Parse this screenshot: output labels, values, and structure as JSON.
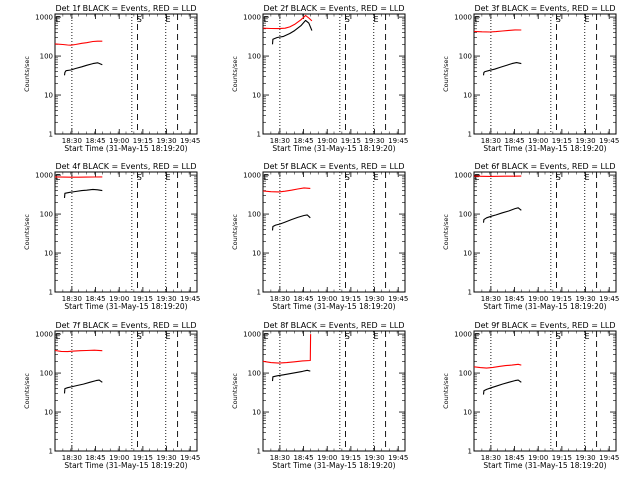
{
  "figure": {
    "xlabel": "Start Time (31-May-15 18:19:20)",
    "ylabel": "Counts/sec",
    "x_tick_labels": [
      "18:30",
      "18:45",
      "19:00",
      "19:15",
      "19:30",
      "19:45"
    ],
    "y_tick_labels": [
      "1",
      "10",
      "100",
      "1000"
    ],
    "markers": [
      "E",
      "S",
      "E"
    ],
    "colors": {
      "events": "#000000",
      "lld": "#ff0000"
    }
  },
  "chart_data": [
    {
      "type": "line",
      "title": "Det 1f BLACK = Events, RED = LLD",
      "y_scale": "log",
      "ylim": [
        1,
        1200
      ],
      "x_unit": "minutes after 18:19:20",
      "xlim": [
        0,
        90
      ],
      "vlines_dotted": [
        10.7,
        48.7,
        70.2
      ],
      "vlines_dashed": [
        52.3,
        77.7
      ],
      "series": [
        {
          "name": "LLD",
          "color": "#ff0000",
          "points": [
            [
              0,
              205
            ],
            [
              5,
              198
            ],
            [
              8,
              192
            ],
            [
              10,
              190
            ],
            [
              13,
              198
            ],
            [
              17,
              212
            ],
            [
              20,
              220
            ],
            [
              24,
              236
            ],
            [
              27,
              240
            ],
            [
              30,
              240
            ]
          ]
        },
        {
          "name": "Events",
          "color": "#000000",
          "points": [
            [
              6,
              32
            ],
            [
              6.3,
              38
            ],
            [
              7,
              42
            ],
            [
              10,
              44
            ],
            [
              13,
              48
            ],
            [
              17,
              53
            ],
            [
              20,
              58
            ],
            [
              24,
              64
            ],
            [
              27,
              67
            ],
            [
              30,
              60
            ]
          ]
        }
      ]
    },
    {
      "type": "line",
      "title": "Det 2f BLACK = Events, RED = LLD",
      "y_scale": "log",
      "ylim": [
        1,
        1200
      ],
      "x_unit": "minutes after 18:19:20",
      "xlim": [
        0,
        90
      ],
      "vlines_dotted": [
        10.7,
        48.7,
        70.2
      ],
      "vlines_dashed": [
        52.3,
        77.7
      ],
      "series": [
        {
          "name": "LLD",
          "color": "#ff0000",
          "points": [
            [
              0,
              520
            ],
            [
              5,
              510
            ],
            [
              10,
              505
            ],
            [
              14,
              520
            ],
            [
              17,
              560
            ],
            [
              20,
              650
            ],
            [
              24,
              850
            ],
            [
              27,
              1100
            ],
            [
              29,
              950
            ],
            [
              31,
              800
            ]
          ]
        },
        {
          "name": "Events",
          "color": "#000000",
          "points": [
            [
              6,
              200
            ],
            [
              6.3,
              270
            ],
            [
              9,
              300
            ],
            [
              13,
              320
            ],
            [
              17,
              380
            ],
            [
              20,
              450
            ],
            [
              24,
              600
            ],
            [
              27,
              820
            ],
            [
              29,
              700
            ],
            [
              31,
              450
            ]
          ]
        }
      ]
    },
    {
      "type": "line",
      "title": "Det 3f BLACK = Events, RED = LLD",
      "y_scale": "log",
      "ylim": [
        1,
        1200
      ],
      "x_unit": "minutes after 18:19:20",
      "xlim": [
        0,
        90
      ],
      "vlines_dotted": [
        10.7,
        48.7,
        70.2
      ],
      "vlines_dashed": [
        52.3,
        77.7
      ],
      "series": [
        {
          "name": "LLD",
          "color": "#ff0000",
          "points": [
            [
              0,
              430
            ],
            [
              5,
              420
            ],
            [
              10,
              415
            ],
            [
              14,
              425
            ],
            [
              18,
              440
            ],
            [
              22,
              455
            ],
            [
              26,
              470
            ],
            [
              30,
              465
            ]
          ]
        },
        {
          "name": "Events",
          "color": "#000000",
          "points": [
            [
              6,
              32
            ],
            [
              6.3,
              38
            ],
            [
              7,
              40
            ],
            [
              10,
              43
            ],
            [
              13,
              46
            ],
            [
              17,
              52
            ],
            [
              20,
              57
            ],
            [
              24,
              64
            ],
            [
              27,
              68
            ],
            [
              30,
              64
            ]
          ]
        }
      ]
    },
    {
      "type": "line",
      "title": "Det 4f BLACK = Events, RED = LLD",
      "y_scale": "log",
      "ylim": [
        1,
        1200
      ],
      "x_unit": "minutes after 18:19:20",
      "xlim": [
        0,
        90
      ],
      "vlines_dotted": [
        10.7,
        48.7,
        70.2
      ],
      "vlines_dashed": [
        52.3,
        77.7
      ],
      "series": [
        {
          "name": "LLD",
          "color": "#ff0000",
          "points": [
            [
              0,
              900
            ],
            [
              5,
              890
            ],
            [
              10,
              880
            ],
            [
              15,
              885
            ],
            [
              20,
              890
            ],
            [
              25,
              895
            ],
            [
              30,
              900
            ]
          ]
        },
        {
          "name": "Events",
          "color": "#000000",
          "points": [
            [
              6,
              260
            ],
            [
              6.3,
              340
            ],
            [
              9,
              360
            ],
            [
              13,
              380
            ],
            [
              17,
              400
            ],
            [
              20,
              410
            ],
            [
              24,
              430
            ],
            [
              27,
              420
            ],
            [
              30,
              400
            ]
          ]
        }
      ]
    },
    {
      "type": "line",
      "title": "Det 5f BLACK = Events, RED = LLD",
      "y_scale": "log",
      "ylim": [
        1,
        1200
      ],
      "x_unit": "minutes after 18:19:20",
      "xlim": [
        0,
        90
      ],
      "vlines_dotted": [
        10.7,
        48.7,
        70.2
      ],
      "vlines_dashed": [
        52.3,
        77.7
      ],
      "series": [
        {
          "name": "LLD",
          "color": "#ff0000",
          "points": [
            [
              0,
              390
            ],
            [
              5,
              375
            ],
            [
              10,
              370
            ],
            [
              14,
              385
            ],
            [
              18,
              410
            ],
            [
              22,
              440
            ],
            [
              26,
              470
            ],
            [
              30,
              455
            ]
          ]
        },
        {
          "name": "Events",
          "color": "#000000",
          "points": [
            [
              6,
              38
            ],
            [
              6.3,
              48
            ],
            [
              8,
              52
            ],
            [
              11,
              56
            ],
            [
              14,
              62
            ],
            [
              18,
              72
            ],
            [
              22,
              82
            ],
            [
              26,
              92
            ],
            [
              28,
              95
            ],
            [
              30,
              80
            ]
          ]
        }
      ]
    },
    {
      "type": "line",
      "title": "Det 6f BLACK = Events, RED = LLD",
      "y_scale": "log",
      "ylim": [
        1,
        1200
      ],
      "x_unit": "minutes after 18:19:20",
      "xlim": [
        0,
        90
      ],
      "vlines_dotted": [
        10.7,
        48.7,
        70.2
      ],
      "vlines_dashed": [
        52.3,
        77.7
      ],
      "series": [
        {
          "name": "LLD",
          "color": "#ff0000",
          "points": [
            [
              0,
              940
            ],
            [
              5,
              930
            ],
            [
              10,
              925
            ],
            [
              15,
              930
            ],
            [
              20,
              935
            ],
            [
              25,
              938
            ],
            [
              30,
              940
            ]
          ]
        },
        {
          "name": "Events",
          "color": "#000000",
          "points": [
            [
              6,
              60
            ],
            [
              6.3,
              72
            ],
            [
              8,
              80
            ],
            [
              11,
              88
            ],
            [
              14,
              95
            ],
            [
              18,
              108
            ],
            [
              22,
              120
            ],
            [
              26,
              138
            ],
            [
              28,
              145
            ],
            [
              30,
              125
            ]
          ]
        }
      ]
    },
    {
      "type": "line",
      "title": "Det 7f BLACK = Events, RED = LLD",
      "y_scale": "log",
      "ylim": [
        1,
        1200
      ],
      "x_unit": "minutes after 18:19:20",
      "xlim": [
        0,
        90
      ],
      "vlines_dotted": [
        10.7,
        48.7,
        70.2
      ],
      "vlines_dashed": [
        52.3,
        77.7
      ],
      "series": [
        {
          "name": "LLD",
          "color": "#ff0000",
          "points": [
            [
              0,
              380
            ],
            [
              4,
              360
            ],
            [
              8,
              355
            ],
            [
              12,
              365
            ],
            [
              16,
              375
            ],
            [
              20,
              380
            ],
            [
              25,
              385
            ],
            [
              30,
              375
            ]
          ]
        },
        {
          "name": "Events",
          "color": "#000000",
          "points": [
            [
              6,
              30
            ],
            [
              6.3,
              40
            ],
            [
              8,
              42
            ],
            [
              11,
              45
            ],
            [
              14,
              48
            ],
            [
              18,
              52
            ],
            [
              22,
              58
            ],
            [
              26,
              64
            ],
            [
              28,
              66
            ],
            [
              30,
              58
            ]
          ]
        }
      ]
    },
    {
      "type": "line",
      "title": "Det 8f BLACK = Events, RED = LLD",
      "y_scale": "log",
      "ylim": [
        1,
        1200
      ],
      "x_unit": "minutes after 18:19:20",
      "xlim": [
        0,
        90
      ],
      "vlines_dotted": [
        10.7,
        48.7,
        70.2
      ],
      "vlines_dashed": [
        52.3,
        77.7
      ],
      "series": [
        {
          "name": "LLD",
          "color": "#ff0000",
          "points": [
            [
              0,
              200
            ],
            [
              5,
              185
            ],
            [
              10,
              180
            ],
            [
              15,
              185
            ],
            [
              20,
              195
            ],
            [
              25,
              205
            ],
            [
              30,
              210
            ],
            [
              30.2,
              1000
            ]
          ]
        },
        {
          "name": "Events",
          "color": "#000000",
          "points": [
            [
              6,
              62
            ],
            [
              6.3,
              80
            ],
            [
              9,
              85
            ],
            [
              13,
              90
            ],
            [
              17,
              96
            ],
            [
              21,
              103
            ],
            [
              25,
              110
            ],
            [
              28,
              118
            ],
            [
              30,
              112
            ]
          ]
        }
      ]
    },
    {
      "type": "line",
      "title": "Det 9f BLACK = Events, RED = LLD",
      "y_scale": "log",
      "ylim": [
        1,
        1200
      ],
      "x_unit": "minutes after 18:19:20",
      "xlim": [
        0,
        90
      ],
      "vlines_dotted": [
        10.7,
        48.7,
        70.2
      ],
      "vlines_dashed": [
        52.3,
        77.7
      ],
      "series": [
        {
          "name": "LLD",
          "color": "#ff0000",
          "points": [
            [
              0,
              145
            ],
            [
              4,
              138
            ],
            [
              8,
              134
            ],
            [
              12,
              140
            ],
            [
              16,
              148
            ],
            [
              20,
              155
            ],
            [
              24,
              160
            ],
            [
              28,
              168
            ],
            [
              30,
              160
            ]
          ]
        },
        {
          "name": "Events",
          "color": "#000000",
          "points": [
            [
              6,
              28
            ],
            [
              6.3,
              35
            ],
            [
              8,
              38
            ],
            [
              11,
              42
            ],
            [
              14,
              46
            ],
            [
              18,
              52
            ],
            [
              22,
              58
            ],
            [
              26,
              64
            ],
            [
              28,
              66
            ],
            [
              30,
              58
            ]
          ]
        }
      ]
    }
  ]
}
